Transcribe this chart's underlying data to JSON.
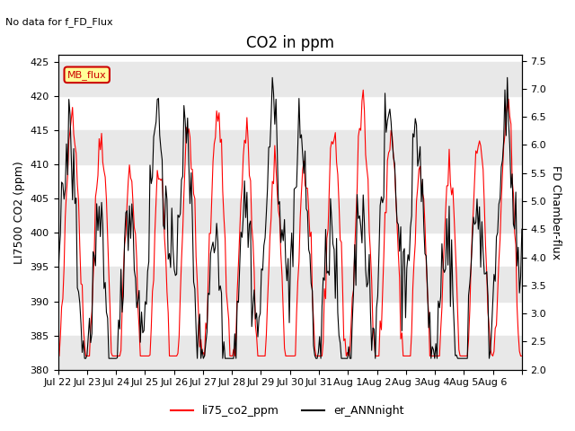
{
  "title": "CO2 in ppm",
  "suptitle": "No data for f_FD_Flux",
  "ylabel_left": "LI7500 CO2 (ppm)",
  "ylabel_right": "FD Chamber-flux",
  "ylim_left": [
    380,
    426
  ],
  "ylim_right": [
    2.0,
    7.6
  ],
  "yticks_left": [
    380,
    385,
    390,
    395,
    400,
    405,
    410,
    415,
    420,
    425
  ],
  "yticks_right": [
    2.0,
    2.5,
    3.0,
    3.5,
    4.0,
    4.5,
    5.0,
    5.5,
    6.0,
    6.5,
    7.0,
    7.5
  ],
  "x_labels": [
    "Jul 22",
    "Jul 23",
    "Jul 24",
    "Jul 25",
    "Jul 26",
    "Jul 27",
    "Jul 28",
    "Jul 29",
    "Jul 30",
    "Jul 31",
    "Aug 1",
    "Aug 2",
    "Aug 3",
    "Aug 4",
    "Aug 5",
    "Aug 6"
  ],
  "legend_entries": [
    "li75_co2_ppm",
    "er_ANNnight"
  ],
  "line_colors": [
    "red",
    "black"
  ],
  "mb_flux_label": "MB_flux",
  "mb_flux_color": "#cc0000",
  "mb_flux_bg": "#ffff99",
  "bg_stripe_color": "#e8e8e8",
  "title_fontsize": 12,
  "label_fontsize": 9,
  "tick_fontsize": 8
}
